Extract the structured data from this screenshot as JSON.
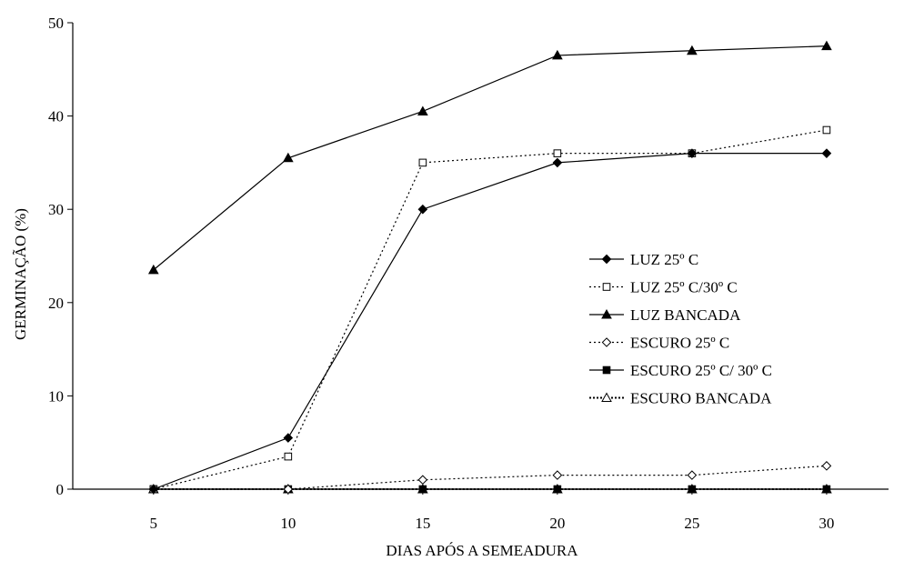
{
  "chart_data": {
    "type": "line",
    "title": "",
    "xlabel": "DIAS APÓS A SEMEADURA",
    "ylabel": "GERMINAÇÃO (%)",
    "x": [
      5,
      10,
      15,
      20,
      25,
      30
    ],
    "x_tick_labels": [
      "5",
      "10",
      "15",
      "20",
      "25",
      "30"
    ],
    "ylim": [
      0,
      50
    ],
    "y_ticks": [
      0,
      10,
      20,
      30,
      40,
      50
    ],
    "y_tick_labels": [
      "0",
      "10",
      "20",
      "30",
      "40",
      "50"
    ],
    "grid": false,
    "legend_position": "right",
    "series": [
      {
        "name": "LUZ 25º C",
        "values": [
          0,
          5.5,
          30,
          35,
          36,
          36
        ],
        "marker": "diamond-filled",
        "line": "solid",
        "color": "#000000"
      },
      {
        "name": "LUZ 25º C/30º C",
        "values": [
          0,
          3.5,
          35,
          36,
          36,
          38.5
        ],
        "marker": "square-open",
        "line": "dotted",
        "color": "#000000"
      },
      {
        "name": "LUZ BANCADA",
        "values": [
          23.5,
          35.5,
          40.5,
          46.5,
          47,
          47.5
        ],
        "marker": "triangle-filled",
        "line": "solid",
        "color": "#000000"
      },
      {
        "name": "ESCURO 25º C",
        "values": [
          0,
          0,
          1,
          1.5,
          1.5,
          2.5
        ],
        "marker": "diamond-open",
        "line": "dotted",
        "color": "#000000"
      },
      {
        "name": "ESCURO 25º C/ 30º C",
        "values": [
          0,
          0,
          0,
          0,
          0,
          0
        ],
        "marker": "square-filled",
        "line": "solid",
        "color": "#000000"
      },
      {
        "name": "ESCURO BANCADA",
        "values": [
          0,
          0,
          0,
          0,
          0,
          0
        ],
        "marker": "triangle-open",
        "line": "dotted-bold",
        "color": "#000000"
      }
    ]
  }
}
